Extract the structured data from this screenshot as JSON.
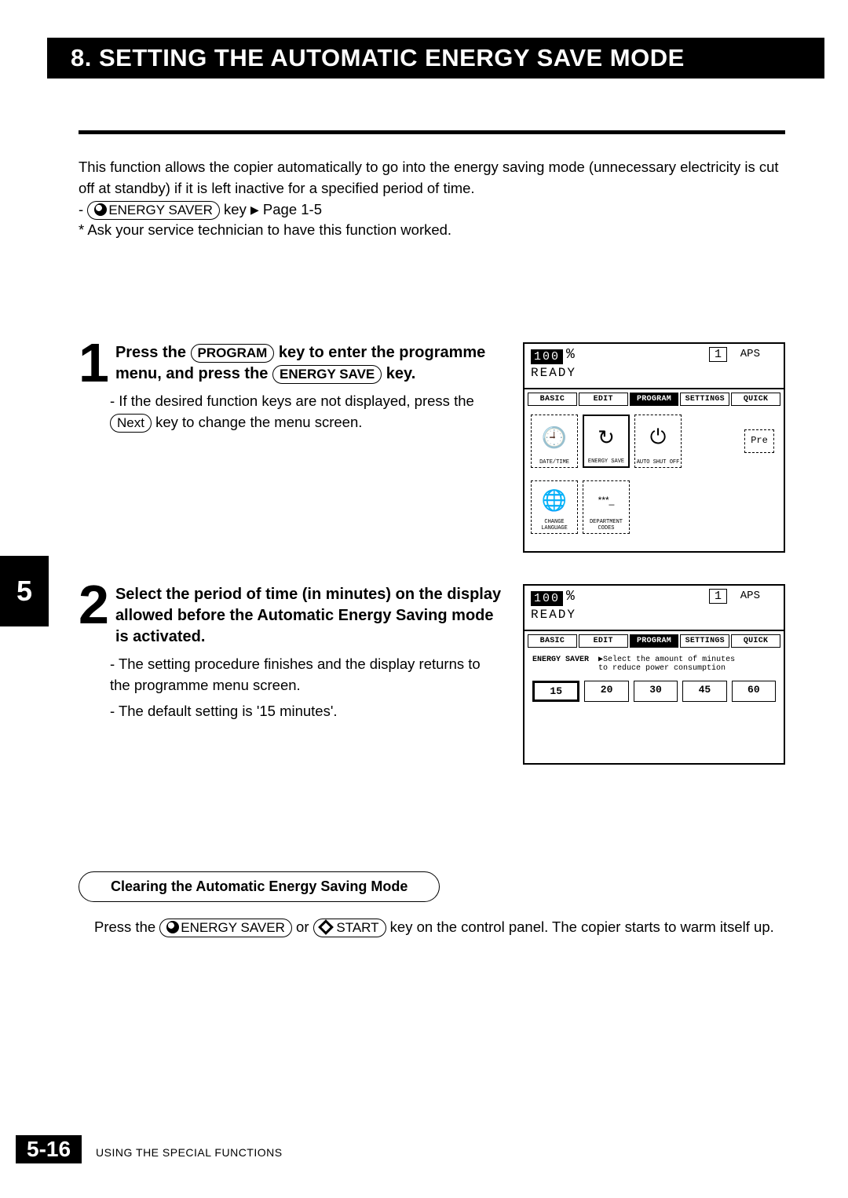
{
  "header": {
    "title": "8. SETTING THE AUTOMATIC ENERGY SAVE MODE"
  },
  "intro": {
    "p1": "This function allows the copier automatically to go into the energy saving mode (unnecessary electricity is cut off at standby) if it is left inactive for a specified period of time.",
    "energy_saver_key": "ENERGY SAVER",
    "page_ref_prefix": "key",
    "page_ref": "Page 1-5",
    "note": "* Ask your service technician to have this function worked."
  },
  "chapter_tab": "5",
  "steps": {
    "one": {
      "num": "1",
      "head_before_k1": "Press the ",
      "key1": "PROGRAM",
      "head_mid": " key to enter the programme menu, and press the ",
      "key2": "ENERGY SAVE",
      "head_after": " key.",
      "bullet_prefix": "- If the desired function keys are not displayed, press the ",
      "next_key": "Next",
      "bullet_suffix": " key to change  the menu screen."
    },
    "two": {
      "num": "2",
      "head": "Select the period of time (in minutes) on the display allowed before the Automatic Energy Saving mode is activated.",
      "b1": "- The setting procedure finishes and the display returns to the programme menu screen.",
      "b2": "- The default setting is '15 minutes'."
    }
  },
  "lcd1": {
    "zoom": "100",
    "pct": "%",
    "ready": "READY",
    "num": "1",
    "aps": "APS",
    "tabs": [
      "BASIC",
      "EDIT",
      "PROGRAM",
      "SETTINGS",
      "QUICK"
    ],
    "active_tab": 2,
    "icons_row1": [
      {
        "label": "DATE/TIME",
        "glyph": "🕘",
        "selected": false
      },
      {
        "label": "ENERGY SAVE",
        "glyph": "↻",
        "selected": true
      },
      {
        "label": "AUTO SHUT OFF",
        "glyph": "⏻",
        "selected": false
      }
    ],
    "pre": "Pre",
    "icons_row2": [
      {
        "label": "CHANGE LANGUAGE",
        "glyph": "🌐",
        "selected": false
      },
      {
        "label": "DEPARTMENT CODES",
        "glyph": "***_",
        "selected": false
      }
    ]
  },
  "lcd2": {
    "zoom": "100",
    "pct": "%",
    "ready": "READY",
    "num": "1",
    "aps": "APS",
    "tabs": [
      "BASIC",
      "EDIT",
      "PROGRAM",
      "SETTINGS",
      "QUICK"
    ],
    "active_tab": 2,
    "sub_label": "ENERGY SAVER",
    "sub_text1": "▶Select the amount of minutes",
    "sub_text2": "  to reduce power consumption",
    "mins": [
      "15",
      "20",
      "30",
      "45",
      "60"
    ],
    "active_min": 0
  },
  "clearing": {
    "heading": "Clearing the Automatic Energy Saving Mode",
    "text_before": "Press the ",
    "key1": "ENERGY SAVER",
    "mid": " or ",
    "key2": "START",
    "text_after": " key on the control panel.  The copier starts to warm itself up."
  },
  "footer": {
    "page": "5-16",
    "section": "USING THE SPECIAL FUNCTIONS"
  },
  "style": {
    "header_bg": "#000000",
    "header_fg": "#ffffff"
  }
}
